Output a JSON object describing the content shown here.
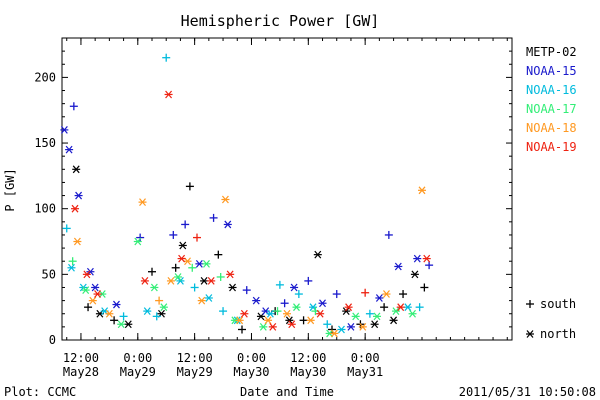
{
  "chart_data": {
    "type": "scatter",
    "title": "Hemispheric Power [GW]",
    "ylabel": "P [GW]",
    "xlabel": "Date and Time",
    "xlim": [
      "2011-05-28T08:00",
      "2011-06-01T07:00"
    ],
    "ylim": [
      0,
      230
    ],
    "y_ticks": [
      0,
      50,
      100,
      150,
      200
    ],
    "x_ticks": [
      {
        "t": "2011-05-28T12:00",
        "top": "12:00",
        "bottom": "May28"
      },
      {
        "t": "2011-05-29T00:00",
        "top": "0:00",
        "bottom": "May29"
      },
      {
        "t": "2011-05-29T12:00",
        "top": "12:00",
        "bottom": "May29"
      },
      {
        "t": "2011-05-30T00:00",
        "top": "0:00",
        "bottom": "May30"
      },
      {
        "t": "2011-05-30T12:00",
        "top": "12:00",
        "bottom": "May30"
      },
      {
        "t": "2011-05-31T00:00",
        "top": "0:00",
        "bottom": "May31"
      }
    ],
    "grid": false,
    "legend_position": "right",
    "marker_legend": [
      {
        "marker": "+",
        "label": "south"
      },
      {
        "marker": "*",
        "label": "north"
      }
    ],
    "series": [
      {
        "name": "METP-02",
        "color": "#000000",
        "points": [
          [
            "2011-05-28T11:00",
            130,
            "*"
          ],
          [
            "2011-05-28T13:30",
            25,
            "+"
          ],
          [
            "2011-05-28T16:00",
            20,
            "*"
          ],
          [
            "2011-05-28T19:00",
            15,
            "+"
          ],
          [
            "2011-05-28T22:00",
            12,
            "*"
          ],
          [
            "2011-05-29T03:00",
            52,
            "+"
          ],
          [
            "2011-05-29T05:00",
            20,
            "*"
          ],
          [
            "2011-05-29T08:00",
            55,
            "+"
          ],
          [
            "2011-05-29T09:30",
            72,
            "*"
          ],
          [
            "2011-05-29T11:00",
            117,
            "+"
          ],
          [
            "2011-05-29T14:00",
            45,
            "*"
          ],
          [
            "2011-05-29T17:00",
            65,
            "+"
          ],
          [
            "2011-05-29T20:00",
            40,
            "*"
          ],
          [
            "2011-05-29T22:00",
            8,
            "+"
          ],
          [
            "2011-05-30T02:00",
            18,
            "*"
          ],
          [
            "2011-05-30T05:00",
            22,
            "+"
          ],
          [
            "2011-05-30T08:00",
            15,
            "*"
          ],
          [
            "2011-05-30T11:00",
            15,
            "+"
          ],
          [
            "2011-05-30T14:00",
            65,
            "*"
          ],
          [
            "2011-05-30T17:00",
            8,
            "+"
          ],
          [
            "2011-05-30T20:00",
            22,
            "*"
          ],
          [
            "2011-05-30T23:00",
            12,
            "+"
          ],
          [
            "2011-05-31T02:00",
            12,
            "*"
          ],
          [
            "2011-05-31T04:00",
            25,
            "+"
          ],
          [
            "2011-05-31T06:00",
            15,
            "*"
          ],
          [
            "2011-05-31T08:00",
            35,
            "+"
          ],
          [
            "2011-05-31T10:30",
            50,
            "*"
          ],
          [
            "2011-05-31T12:30",
            40,
            "+"
          ]
        ]
      },
      {
        "name": "NOAA-15",
        "color": "#1a1acc",
        "points": [
          [
            "2011-05-28T08:30",
            160,
            "*"
          ],
          [
            "2011-05-28T09:30",
            145,
            "*"
          ],
          [
            "2011-05-28T10:30",
            178,
            "+"
          ],
          [
            "2011-05-28T11:30",
            110,
            "*"
          ],
          [
            "2011-05-28T14:00",
            52,
            "*"
          ],
          [
            "2011-05-28T15:00",
            40,
            "*"
          ],
          [
            "2011-05-28T19:30",
            27,
            "*"
          ],
          [
            "2011-05-29T00:30",
            78,
            "+"
          ],
          [
            "2011-05-29T07:30",
            80,
            "+"
          ],
          [
            "2011-05-29T10:00",
            88,
            "+"
          ],
          [
            "2011-05-29T13:00",
            58,
            "*"
          ],
          [
            "2011-05-29T16:00",
            93,
            "+"
          ],
          [
            "2011-05-29T19:00",
            88,
            "*"
          ],
          [
            "2011-05-29T23:00",
            38,
            "+"
          ],
          [
            "2011-05-30T01:00",
            30,
            "*"
          ],
          [
            "2011-05-30T03:00",
            22,
            "*"
          ],
          [
            "2011-05-30T07:00",
            28,
            "+"
          ],
          [
            "2011-05-30T09:00",
            40,
            "*"
          ],
          [
            "2011-05-30T12:00",
            45,
            "+"
          ],
          [
            "2011-05-30T15:00",
            28,
            "*"
          ],
          [
            "2011-05-30T18:00",
            35,
            "+"
          ],
          [
            "2011-05-30T21:00",
            10,
            "*"
          ],
          [
            "2011-05-31T03:00",
            32,
            "*"
          ],
          [
            "2011-05-31T05:00",
            80,
            "+"
          ],
          [
            "2011-05-31T07:00",
            56,
            "*"
          ],
          [
            "2011-05-31T11:00",
            62,
            "*"
          ],
          [
            "2011-05-31T13:30",
            57,
            "+"
          ]
        ]
      },
      {
        "name": "NOAA-16",
        "color": "#00bbdd",
        "points": [
          [
            "2011-05-28T09:00",
            85,
            "+"
          ],
          [
            "2011-05-28T10:00",
            55,
            "*"
          ],
          [
            "2011-05-28T12:30",
            40,
            "*"
          ],
          [
            "2011-05-28T17:00",
            22,
            "*"
          ],
          [
            "2011-05-28T21:00",
            18,
            "+"
          ],
          [
            "2011-05-29T02:00",
            22,
            "*"
          ],
          [
            "2011-05-29T04:00",
            18,
            "+"
          ],
          [
            "2011-05-29T06:00",
            215,
            "+"
          ],
          [
            "2011-05-29T09:00",
            45,
            "*"
          ],
          [
            "2011-05-29T12:00",
            40,
            "+"
          ],
          [
            "2011-05-29T15:00",
            32,
            "*"
          ],
          [
            "2011-05-29T18:00",
            22,
            "+"
          ],
          [
            "2011-05-29T21:00",
            15,
            "*"
          ],
          [
            "2011-05-30T04:00",
            20,
            "*"
          ],
          [
            "2011-05-30T06:00",
            42,
            "+"
          ],
          [
            "2011-05-30T10:00",
            35,
            "+"
          ],
          [
            "2011-05-30T13:00",
            25,
            "*"
          ],
          [
            "2011-05-30T16:00",
            12,
            "+"
          ],
          [
            "2011-05-30T19:00",
            8,
            "*"
          ],
          [
            "2011-05-31T01:00",
            20,
            "+"
          ],
          [
            "2011-05-31T09:00",
            25,
            "*"
          ],
          [
            "2011-05-31T11:30",
            25,
            "+"
          ]
        ]
      },
      {
        "name": "NOAA-17",
        "color": "#33ee77",
        "points": [
          [
            "2011-05-28T10:15",
            60,
            "+"
          ],
          [
            "2011-05-28T13:00",
            38,
            "*"
          ],
          [
            "2011-05-28T16:30",
            35,
            "*"
          ],
          [
            "2011-05-28T20:30",
            12,
            "*"
          ],
          [
            "2011-05-29T00:00",
            75,
            "*"
          ],
          [
            "2011-05-29T03:30",
            40,
            "*"
          ],
          [
            "2011-05-29T05:30",
            25,
            "*"
          ],
          [
            "2011-05-29T08:30",
            48,
            "*"
          ],
          [
            "2011-05-29T11:30",
            55,
            "+"
          ],
          [
            "2011-05-29T14:30",
            58,
            "*"
          ],
          [
            "2011-05-29T17:30",
            48,
            "+"
          ],
          [
            "2011-05-29T20:30",
            15,
            "*"
          ],
          [
            "2011-05-30T02:30",
            10,
            "*"
          ],
          [
            "2011-05-30T05:30",
            22,
            "+"
          ],
          [
            "2011-05-30T09:30",
            25,
            "*"
          ],
          [
            "2011-05-30T13:30",
            22,
            "+"
          ],
          [
            "2011-05-30T16:30",
            5,
            "*"
          ],
          [
            "2011-05-30T22:00",
            18,
            "*"
          ],
          [
            "2011-05-31T02:30",
            18,
            "*"
          ],
          [
            "2011-05-31T06:30",
            22,
            "*"
          ],
          [
            "2011-05-31T10:00",
            20,
            "*"
          ]
        ]
      },
      {
        "name": "NOAA-18",
        "color": "#ff9922",
        "points": [
          [
            "2011-05-28T11:15",
            75,
            "*"
          ],
          [
            "2011-05-28T14:30",
            30,
            "*"
          ],
          [
            "2011-05-28T18:00",
            20,
            "*"
          ],
          [
            "2011-05-29T01:00",
            105,
            "*"
          ],
          [
            "2011-05-29T04:30",
            30,
            "+"
          ],
          [
            "2011-05-29T07:00",
            45,
            "*"
          ],
          [
            "2011-05-29T10:30",
            60,
            "*"
          ],
          [
            "2011-05-29T13:30",
            30,
            "*"
          ],
          [
            "2011-05-29T18:30",
            107,
            "*"
          ],
          [
            "2011-05-29T21:30",
            15,
            "*"
          ],
          [
            "2011-05-30T03:30",
            15,
            "*"
          ],
          [
            "2011-05-30T07:30",
            20,
            "*"
          ],
          [
            "2011-05-30T12:30",
            15,
            "*"
          ],
          [
            "2011-05-30T17:30",
            5,
            "*"
          ],
          [
            "2011-05-30T23:30",
            10,
            "*"
          ],
          [
            "2011-05-31T04:30",
            35,
            "*"
          ],
          [
            "2011-05-31T12:00",
            114,
            "*"
          ]
        ]
      },
      {
        "name": "NOAA-19",
        "color": "#ee2211",
        "points": [
          [
            "2011-05-28T10:45",
            100,
            "*"
          ],
          [
            "2011-05-28T13:15",
            50,
            "*"
          ],
          [
            "2011-05-28T15:30",
            35,
            "*"
          ],
          [
            "2011-05-29T01:30",
            45,
            "*"
          ],
          [
            "2011-05-29T06:30",
            187,
            "*"
          ],
          [
            "2011-05-29T09:15",
            62,
            "*"
          ],
          [
            "2011-05-29T12:30",
            78,
            "+"
          ],
          [
            "2011-05-29T15:30",
            45,
            "*"
          ],
          [
            "2011-05-29T19:30",
            50,
            "*"
          ],
          [
            "2011-05-29T22:30",
            20,
            "*"
          ],
          [
            "2011-05-30T04:30",
            10,
            "*"
          ],
          [
            "2011-05-30T08:30",
            12,
            "*"
          ],
          [
            "2011-05-30T14:30",
            20,
            "*"
          ],
          [
            "2011-05-30T20:30",
            25,
            "*"
          ],
          [
            "2011-05-31T00:00",
            36,
            "+"
          ],
          [
            "2011-05-31T07:30",
            25,
            "*"
          ],
          [
            "2011-05-31T13:00",
            62,
            "*"
          ]
        ]
      }
    ]
  },
  "footer": {
    "plot_credit": "Plot: CCMC",
    "timestamp": "2011/05/31  10:50:08"
  }
}
